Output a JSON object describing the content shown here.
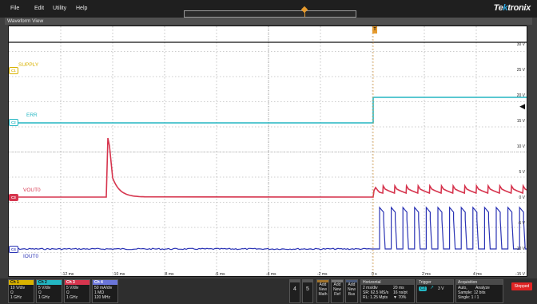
{
  "menu": [
    "File",
    "Edit",
    "Utility",
    "Help"
  ],
  "brand": {
    "prefix": "Te",
    "accent": "k",
    "suffix": "tronix"
  },
  "view_tab": "Waveform View",
  "trigger_marker": "T",
  "channels": [
    {
      "tag": "C1",
      "name": "SUPPLY",
      "color": "#d9b200"
    },
    {
      "tag": "C2",
      "name": "ERR",
      "color": "#23b6c2"
    },
    {
      "tag": "C3",
      "name": "VOUT0",
      "color": "#d6354e"
    },
    {
      "tag": "C4",
      "name": "IOUT0",
      "color": "#2b34b5"
    }
  ],
  "y_axis_labels": [
    "30 V",
    "25 V",
    "20 V",
    "15 V",
    "10 V",
    "5 V",
    "0 V",
    "-5 V",
    "-10 V",
    "-15 V"
  ],
  "x_axis_labels": [
    "-12 ms",
    "-10 ms",
    "-8 ms",
    "-6 ms",
    "-4 ms",
    "-2 ms",
    "0 s",
    "2 ms",
    "4 ms"
  ],
  "channel_badges": [
    {
      "title": "Ch 1",
      "lines": [
        "10 V/div",
        "Ω",
        "1 GHz"
      ],
      "color": "#d9b200"
    },
    {
      "title": "Ch 2",
      "lines": [
        "5 V/div",
        "Ω",
        "1 GHz"
      ],
      "color": "#23b6c2"
    },
    {
      "title": "Ch 3",
      "lines": [
        "5 V/div",
        "Ω",
        "1 GHz"
      ],
      "color": "#d6354e"
    },
    {
      "title": "Ch 4",
      "lines": [
        "50 mA/div",
        "1 MΩ",
        "120 MHz"
      ],
      "color": "#6a75d9"
    }
  ],
  "num_buttons": [
    "4",
    "5"
  ],
  "add_buttons": [
    [
      "Add",
      "New",
      "Math"
    ],
    [
      "Add",
      "New",
      "Ref"
    ],
    [
      "Add",
      "New",
      "Bus"
    ]
  ],
  "horizontal": {
    "title": "Horizontal",
    "line1a": "2 ms/div",
    "line1b": "20 ms",
    "line2a": "SR: 62.5 MS/s",
    "line2b": "16 ns/pt",
    "line3a": "RL: 1.25 Mpts",
    "line3b": "70%"
  },
  "trigger": {
    "title": "Trigger",
    "channel": "C2",
    "level": "3 V"
  },
  "acquisition": {
    "title": "Acquisition",
    "line1a": "Auto,",
    "line1b": "Analyze",
    "line2": "Sample: 12 bits",
    "line3": "Single: 1 / 1"
  },
  "status": "Stopped"
}
